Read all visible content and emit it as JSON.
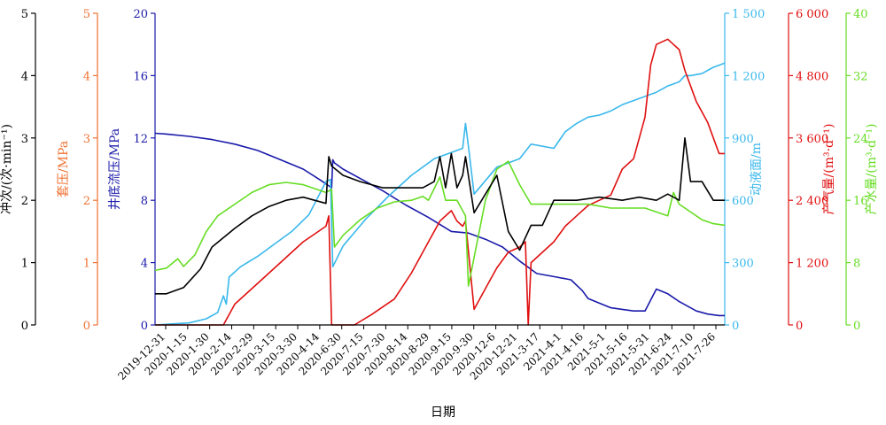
{
  "chart_data": {
    "type": "line",
    "xlabel": "日期",
    "x_ticks": [
      "2019-12-31",
      "2020-1-15",
      "2020-1-30",
      "2020-2-14",
      "2020-2-29",
      "2020-3-15",
      "2020-3-30",
      "2020-4-14",
      "2020-6-30",
      "2020-7-15",
      "2020-7-30",
      "2020-8-14",
      "2020-8-29",
      "2020-9-15",
      "2020-9-30",
      "2020-12-6",
      "2020-12-21",
      "2021-3-17",
      "2021-4-1",
      "2021-4-16",
      "2021-5-1",
      "2021-5-16",
      "2021-5-31",
      "2021-6-24",
      "2021-7-10",
      "2021-7-26"
    ],
    "axes": [
      {
        "id": "stroke",
        "label": "冲次/(次·min⁻¹)",
        "color": "#000000",
        "min": 0,
        "max": 5,
        "ticks": [
          0,
          1,
          2,
          3,
          4,
          5
        ],
        "tick_labels": [
          "0",
          "1",
          "2",
          "3",
          "4",
          "5"
        ]
      },
      {
        "id": "casing",
        "label": "套压/MPa",
        "color": "#f07030",
        "min": 0,
        "max": 5,
        "ticks": [
          0,
          1,
          2,
          3,
          4,
          5
        ],
        "tick_labels": [
          "0",
          "1",
          "2",
          "3",
          "4",
          "5"
        ]
      },
      {
        "id": "bhp",
        "label": "井底流压/MPa",
        "color": "#1a1aaa",
        "min": 0,
        "max": 20,
        "ticks": [
          0,
          4,
          8,
          12,
          16,
          20
        ],
        "tick_labels": [
          "0",
          "4",
          "8",
          "12",
          "16",
          "20"
        ]
      },
      {
        "id": "level",
        "label": "动液面/m",
        "color": "#3ab8ec",
        "min": 0,
        "max": 1500,
        "ticks": [
          0,
          300,
          600,
          900,
          1200,
          1500
        ],
        "tick_labels": [
          "0",
          "300",
          "600",
          "900",
          "1 200",
          "1 500"
        ]
      },
      {
        "id": "gas",
        "label": "产气量/(m³·d⁻¹)",
        "color": "#e01010",
        "min": 0,
        "max": 6000,
        "ticks": [
          0,
          1200,
          2400,
          3600,
          4800,
          6000
        ],
        "tick_labels": [
          "0",
          "1 200",
          "2 400",
          "3 600",
          "4 800",
          "6 000"
        ]
      },
      {
        "id": "water",
        "label": "产水量/(m³·d⁻¹)",
        "color": "#66dd22",
        "min": 0,
        "max": 40,
        "ticks": [
          0,
          8,
          16,
          24,
          32,
          40
        ],
        "tick_labels": [
          "0",
          "8",
          "16",
          "24",
          "32",
          "40"
        ]
      }
    ],
    "series": [
      {
        "axis": "bhp",
        "color": "#1a1aaa",
        "x": [
          0,
          0.02,
          0.06,
          0.1,
          0.14,
          0.18,
          0.22,
          0.26,
          0.29,
          0.31,
          0.312,
          0.315,
          0.33,
          0.36,
          0.4,
          0.44,
          0.48,
          0.52,
          0.55,
          0.58,
          0.61,
          0.64,
          0.67,
          0.7,
          0.73,
          0.75,
          0.76,
          0.78,
          0.8,
          0.82,
          0.84,
          0.86,
          0.88,
          0.9,
          0.92,
          0.95,
          0.97,
          0.99,
          1
        ],
        "y": [
          12.3,
          12.25,
          12.1,
          11.9,
          11.6,
          11.2,
          10.6,
          10.0,
          9.3,
          8.8,
          10.6,
          10.4,
          10.0,
          9.4,
          8.6,
          7.7,
          6.9,
          6.0,
          5.9,
          5.5,
          5.0,
          4.1,
          3.3,
          3.1,
          2.9,
          2.2,
          1.7,
          1.4,
          1.1,
          1.0,
          0.9,
          0.9,
          2.3,
          2.0,
          1.5,
          0.9,
          0.7,
          0.6,
          0.6
        ]
      },
      {
        "axis": "level",
        "color": "#3ab8ec",
        "x": [
          0,
          0.03,
          0.06,
          0.09,
          0.11,
          0.12,
          0.125,
          0.13,
          0.15,
          0.18,
          0.21,
          0.24,
          0.27,
          0.3,
          0.308,
          0.312,
          0.33,
          0.37,
          0.41,
          0.45,
          0.49,
          0.52,
          0.54,
          0.545,
          0.55,
          0.56,
          0.6,
          0.64,
          0.66,
          0.7,
          0.72,
          0.74,
          0.76,
          0.78,
          0.8,
          0.82,
          0.85,
          0.88,
          0.9,
          0.92,
          0.93,
          0.94,
          0.96,
          0.98,
          1
        ],
        "y": [
          0,
          5,
          10,
          30,
          60,
          140,
          100,
          230,
          280,
          330,
          390,
          450,
          530,
          690,
          700,
          280,
          380,
          510,
          620,
          720,
          800,
          830,
          850,
          970,
          860,
          630,
          760,
          800,
          870,
          850,
          930,
          970,
          1000,
          1010,
          1030,
          1060,
          1090,
          1120,
          1150,
          1170,
          1200,
          1200,
          1210,
          1240,
          1260
        ]
      },
      {
        "axis": "gas",
        "color": "#e01010",
        "x": [
          0,
          0.11,
          0.115,
          0.12,
          0.14,
          0.18,
          0.22,
          0.26,
          0.3,
          0.305,
          0.31,
          0.32,
          0.33,
          0.35,
          0.38,
          0.42,
          0.45,
          0.48,
          0.5,
          0.52,
          0.53,
          0.54,
          0.545,
          0.56,
          0.58,
          0.6,
          0.62,
          0.64,
          0.65,
          0.655,
          0.66,
          0.7,
          0.72,
          0.74,
          0.76,
          0.78,
          0.8,
          0.82,
          0.84,
          0.86,
          0.87,
          0.88,
          0.9,
          0.92,
          0.93,
          0.95,
          0.97,
          0.99,
          1
        ],
        "y": [
          0,
          0,
          0,
          0,
          400,
          800,
          1200,
          1600,
          1900,
          2100,
          0,
          0,
          0,
          0,
          200,
          500,
          1000,
          1600,
          2000,
          2200,
          2000,
          1900,
          2000,
          300,
          700,
          1100,
          1400,
          1500,
          1600,
          0,
          1200,
          1600,
          1900,
          2100,
          2300,
          2400,
          2500,
          3000,
          3200,
          4000,
          5000,
          5400,
          5500,
          5300,
          4900,
          4300,
          3900,
          3300,
          3300
        ]
      },
      {
        "axis": "water",
        "color": "#66dd22",
        "x": [
          0,
          0.02,
          0.04,
          0.05,
          0.07,
          0.09,
          0.11,
          0.14,
          0.17,
          0.2,
          0.23,
          0.26,
          0.28,
          0.3,
          0.31,
          0.315,
          0.33,
          0.36,
          0.39,
          0.42,
          0.45,
          0.47,
          0.48,
          0.49,
          0.5,
          0.51,
          0.53,
          0.545,
          0.55,
          0.58,
          0.6,
          0.62,
          0.64,
          0.66,
          0.68,
          0.72,
          0.76,
          0.8,
          0.84,
          0.86,
          0.88,
          0.9,
          0.91,
          0.92,
          0.94,
          0.96,
          0.98,
          1
        ],
        "y": [
          7,
          7.3,
          8.5,
          7.5,
          9,
          12,
          14,
          15.5,
          17,
          18,
          18.3,
          18,
          17.5,
          17,
          17.4,
          10,
          11.5,
          13.5,
          15,
          15.8,
          16,
          16.5,
          16,
          17.5,
          19,
          16,
          16,
          14,
          5,
          16,
          20,
          21,
          18,
          15.5,
          15.5,
          15.5,
          15.5,
          15,
          15,
          15,
          14.5,
          14,
          17,
          15.5,
          14.5,
          13.5,
          13,
          12.8
        ]
      },
      {
        "axis": "stroke",
        "color": "#000000",
        "x": [
          0,
          0.02,
          0.05,
          0.08,
          0.1,
          0.12,
          0.14,
          0.17,
          0.2,
          0.23,
          0.26,
          0.28,
          0.3,
          0.305,
          0.31,
          0.33,
          0.36,
          0.4,
          0.44,
          0.47,
          0.49,
          0.5,
          0.51,
          0.52,
          0.53,
          0.54,
          0.545,
          0.56,
          0.58,
          0.6,
          0.62,
          0.64,
          0.66,
          0.68,
          0.7,
          0.74,
          0.78,
          0.82,
          0.85,
          0.88,
          0.9,
          0.92,
          0.93,
          0.94,
          0.96,
          0.98,
          1
        ],
        "y": [
          0.5,
          0.5,
          0.6,
          0.9,
          1.25,
          1.4,
          1.55,
          1.75,
          1.9,
          2.0,
          2.05,
          2.0,
          1.95,
          2.7,
          2.55,
          2.4,
          2.3,
          2.2,
          2.2,
          2.2,
          2.3,
          2.7,
          2.2,
          2.75,
          2.2,
          2.4,
          2.7,
          1.8,
          2.1,
          2.4,
          1.5,
          1.2,
          1.6,
          1.6,
          2.0,
          2.0,
          2.05,
          2.0,
          2.05,
          2.0,
          2.1,
          2.0,
          3.0,
          2.3,
          2.3,
          2.0,
          2.0
        ]
      }
    ]
  }
}
